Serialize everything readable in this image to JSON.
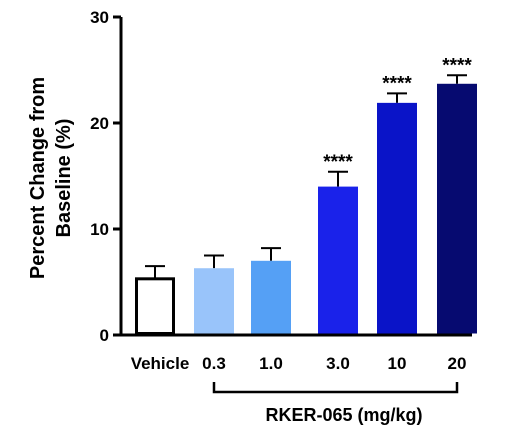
{
  "chart_data": {
    "type": "bar",
    "categories": [
      "Vehicle",
      "0.3",
      "1.0",
      "3.0",
      "10",
      "20"
    ],
    "values": [
      5.3,
      6.3,
      7.0,
      14.0,
      21.9,
      23.7
    ],
    "errors": [
      1.2,
      1.2,
      1.2,
      1.4,
      0.9,
      0.8
    ],
    "significance": [
      "",
      "",
      "",
      "****",
      "****",
      "****"
    ],
    "colors": [
      "#ffffff",
      "#99c4fa",
      "#55a0f5",
      "#1a22ea",
      "#0a14c8",
      "#060a70"
    ],
    "ylabel_lines": [
      "Percent Change from",
      "Baseline (%)"
    ],
    "group_label": "RKER-065 (mg/kg)",
    "ylim": [
      0,
      30
    ],
    "yticks": [
      0,
      10,
      20,
      30
    ],
    "grid": false
  }
}
